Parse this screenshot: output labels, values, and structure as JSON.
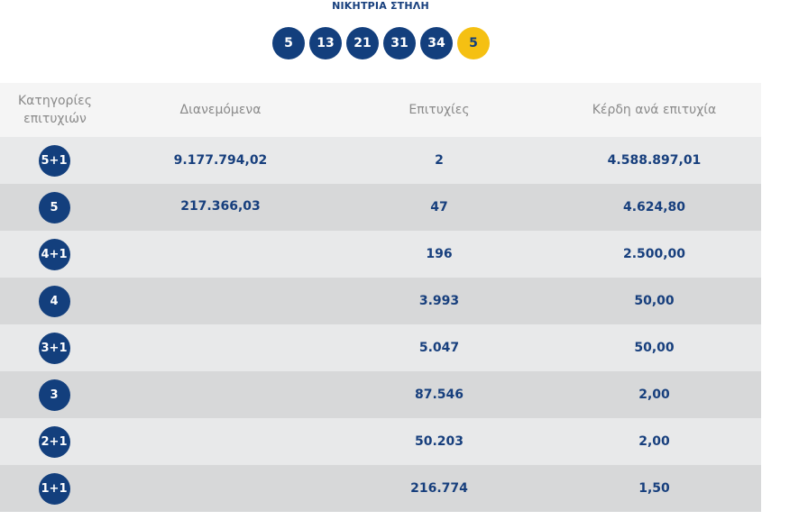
{
  "header": {
    "title": "ΝΙΚΗΤΡΙΑ ΣΤΗΛΗ",
    "numbers": [
      "5",
      "13",
      "21",
      "31",
      "34"
    ],
    "bonus": "5"
  },
  "table": {
    "columns": [
      "Κατηγορίες επιτυχιών",
      "Διανεμόμενα",
      "Επιτυχίες",
      "Κέρδη ανά επιτυχία"
    ],
    "rows": [
      {
        "category": "5+1",
        "distributed": "9.177.794,02",
        "winners": "2",
        "prize": "4.588.897,01"
      },
      {
        "category": "5",
        "distributed": "217.366,03",
        "winners": "47",
        "prize": "4.624,80"
      },
      {
        "category": "4+1",
        "distributed": "",
        "winners": "196",
        "prize": "2.500,00"
      },
      {
        "category": "4",
        "distributed": "",
        "winners": "3.993",
        "prize": "50,00"
      },
      {
        "category": "3+1",
        "distributed": "",
        "winners": "5.047",
        "prize": "50,00"
      },
      {
        "category": "3",
        "distributed": "",
        "winners": "87.546",
        "prize": "2,00"
      },
      {
        "category": "2+1",
        "distributed": "",
        "winners": "50.203",
        "prize": "2,00"
      },
      {
        "category": "1+1",
        "distributed": "",
        "winners": "216.774",
        "prize": "1,50"
      }
    ]
  },
  "colors": {
    "ball": "#133f7d",
    "bonus_ball": "#f5c012",
    "row_light": "#e8e9ea",
    "row_dark": "#d7d8d9"
  }
}
